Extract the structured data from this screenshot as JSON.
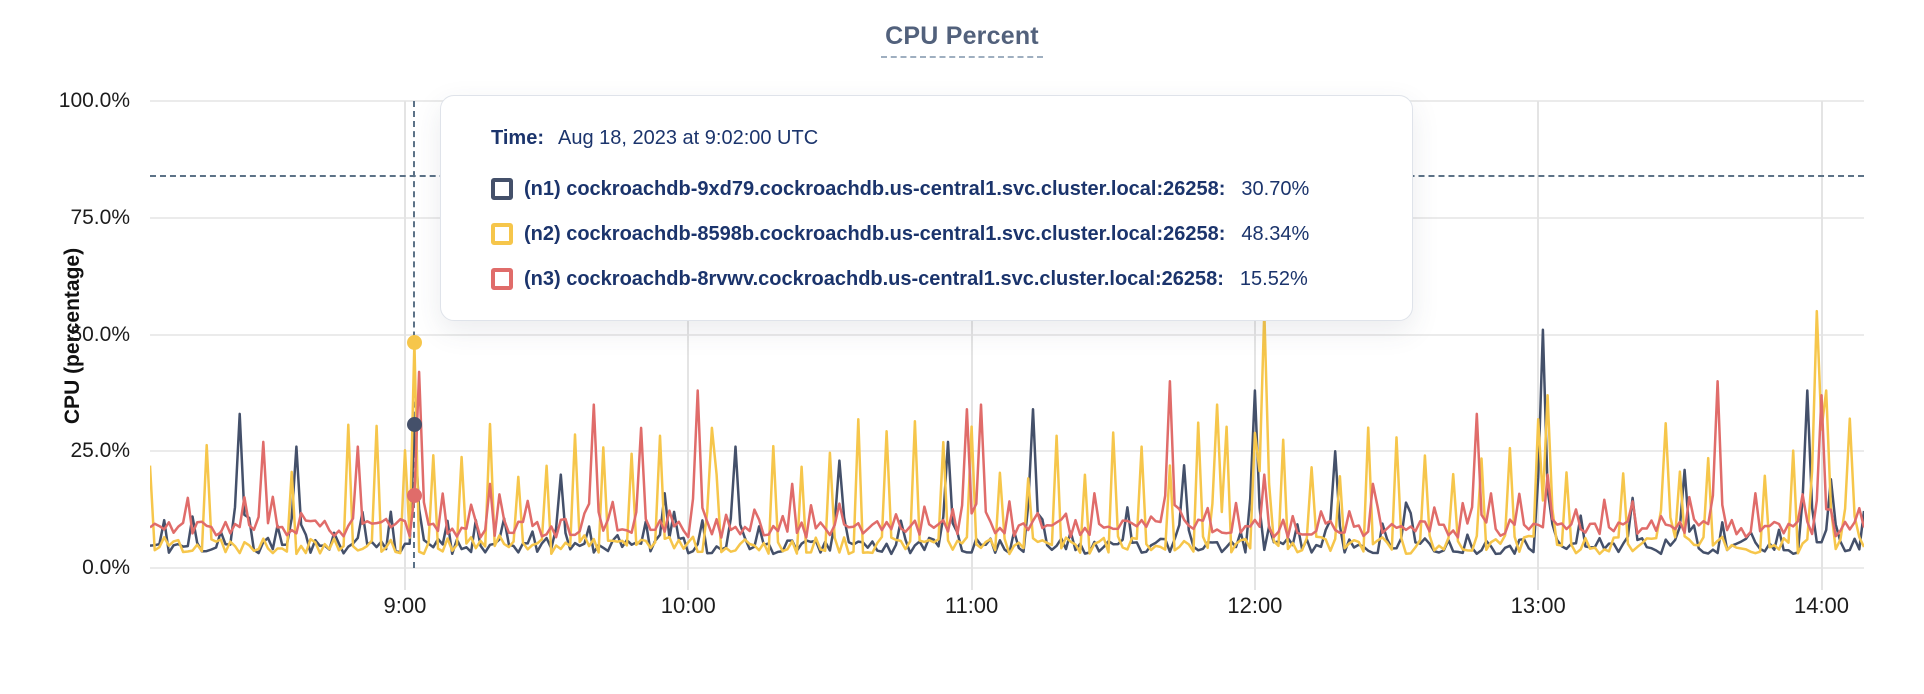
{
  "chart": {
    "title": "CPU Percent",
    "ylabel": "CPU (percentage)"
  },
  "tooltip": {
    "time_label": "Time:",
    "time_value": "Aug 18, 2023 at 9:02:00 UTC"
  },
  "colors": {
    "background": "#ffffff",
    "title_text": "#52617c",
    "axis_text": "#1c1c1c",
    "gridline": "#ebebeb",
    "dashed_guides": "#5c7287",
    "tooltip_text": "#1b346c",
    "series_n1": "#44506a",
    "series_n2": "#f6c64b",
    "series_n3": "#e06c6a"
  },
  "chart_data": {
    "type": "line",
    "title": "CPU Percent",
    "xlabel": "",
    "ylabel": "CPU (percentage)",
    "ylim": [
      0,
      100
    ],
    "grid": true,
    "legend_position": "tooltip-overlay",
    "y_ticks": [
      {
        "label": "0.0%",
        "pct": 0
      },
      {
        "label": "25.0%",
        "pct": 25
      },
      {
        "label": "50.0%",
        "pct": 50
      },
      {
        "label": "75.0%",
        "pct": 75
      },
      {
        "label": "100.0%",
        "pct": 100
      }
    ],
    "x_start_min": 486,
    "x_end_min": 849,
    "step_min": 1,
    "x_ticks": [
      {
        "label": "9:00",
        "min": 540
      },
      {
        "label": "10:00",
        "min": 600
      },
      {
        "label": "11:00",
        "min": 660
      },
      {
        "label": "12:00",
        "min": 720
      },
      {
        "label": "13:00",
        "min": 780
      },
      {
        "label": "14:00",
        "min": 840
      }
    ],
    "threshold_pct": 84,
    "hover": {
      "time_min": 542,
      "time_text": "Aug 18, 2023 at 9:02:00 UTC"
    },
    "series": [
      {
        "id": "n1",
        "legend_label": "(n1) cockroachdb-9xd79.cockroachdb.us-central1.svc.cluster.local:26258:",
        "hover_value": 30.7,
        "hover_value_label": "30.70%",
        "color": "#44506a",
        "gen": {
          "seed": 11,
          "baseline": [
            3.0,
            6.5
          ],
          "periodic": {
            "period": 6,
            "phase": 3,
            "amp": [
              7,
              13
            ],
            "skip": 0.25
          },
          "peaks": [
            [
              505,
              33
            ],
            [
              517,
              26
            ],
            [
              531,
              12
            ],
            [
              573,
              20
            ],
            [
              595,
              16
            ],
            [
              610,
              26
            ],
            [
              632,
              23
            ],
            [
              655,
              27
            ],
            [
              673,
              34
            ],
            [
              693,
              13
            ],
            [
              705,
              22
            ],
            [
              720,
              38
            ],
            [
              737,
              25
            ],
            [
              752,
              14
            ],
            [
              781,
              51
            ],
            [
              800,
              15
            ],
            [
              811,
              21
            ],
            [
              837,
              38
            ],
            [
              842,
              19
            ]
          ],
          "fixed": [
            [
              542,
              30.7
            ]
          ]
        }
      },
      {
        "id": "n2",
        "legend_label": "(n2) cockroachdb-8598b.cockroachdb.us-central1.svc.cluster.local:26258:",
        "hover_value": 48.34,
        "hover_value_label": "48.34%",
        "color": "#f6c64b",
        "gen": {
          "seed": 22,
          "baseline": [
            3.0,
            7.0
          ],
          "periodic": {
            "period": 6,
            "phase": 0,
            "amp": [
              19,
              32
            ],
            "skip": 0.12
          },
          "peaks": [
            [
              605,
              30
            ],
            [
              712,
              35
            ],
            [
              722,
              55
            ],
            [
              782,
              37
            ],
            [
              807,
              31
            ],
            [
              839,
              55
            ],
            [
              841,
              38
            ],
            [
              846,
              32
            ]
          ],
          "fixed": [
            [
              542,
              48.34
            ]
          ]
        }
      },
      {
        "id": "n3",
        "legend_label": "(n3) cockroachdb-8rvwv.cockroachdb.us-central1.svc.cluster.local:26258:",
        "hover_value": 15.52,
        "hover_value_label": "15.52%",
        "color": "#e06c6a",
        "gen": {
          "seed": 33,
          "baseline": [
            6.5,
            10.5
          ],
          "periodic": {
            "period": 6,
            "phase": 2,
            "amp": [
              11,
              16
            ],
            "skip": 0.3
          },
          "peaks": [
            [
              510,
              27
            ],
            [
              530,
              26
            ],
            [
              543,
              42
            ],
            [
              558,
              18
            ],
            [
              580,
              35
            ],
            [
              590,
              30
            ],
            [
              602,
              38
            ],
            [
              622,
              18
            ],
            [
              659,
              34
            ],
            [
              662,
              35
            ],
            [
              686,
              16
            ],
            [
              702,
              40
            ],
            [
              722,
              20
            ],
            [
              745,
              18
            ],
            [
              767,
              33
            ],
            [
              782,
              20
            ],
            [
              818,
              40
            ],
            [
              826,
              16
            ],
            [
              840,
              37
            ]
          ],
          "fixed": [
            [
              542,
              15.52
            ]
          ]
        }
      }
    ]
  }
}
